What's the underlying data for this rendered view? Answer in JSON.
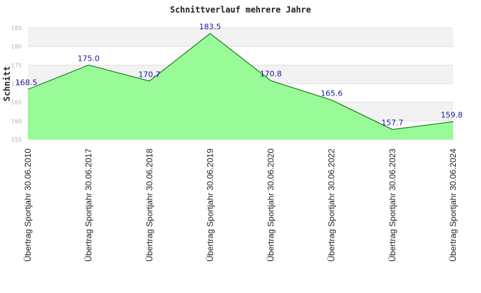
{
  "chart_data": {
    "type": "area",
    "title": "Schnittverlauf mehrere Jahre",
    "ylabel": "Schnitt",
    "xlabel": "",
    "ylim": [
      155,
      185
    ],
    "yticks": [
      155,
      160,
      165,
      170,
      175,
      180,
      185
    ],
    "categories": [
      "Übertrag Sportjahr 30.06.2010",
      "Übertrag Sportjahr 30.06.2017",
      "Übertrag Sportjahr 30.06.2018",
      "Übertrag Sportjahr 30.06.2019",
      "Übertrag Sportjahr 30.06.2020",
      "Übertrag Sportjahr 30.06.2022",
      "Übertrag Sportjahr 30.06.2023",
      "Übertrag Sportjahr 30.06.2024"
    ],
    "values": [
      168.5,
      175.0,
      170.7,
      183.5,
      170.8,
      165.6,
      157.7,
      159.8
    ],
    "value_labels": [
      "168.5",
      "175.0",
      "170.7",
      "183.5",
      "170.8",
      "165.6",
      "157.7",
      "159.8"
    ],
    "grid": true,
    "colors": {
      "fill": "#98fb98",
      "line": "#1e7a1e",
      "band": "#f2f2f2",
      "grid": "#e0e0e0",
      "label": "#1a1aa0"
    }
  }
}
